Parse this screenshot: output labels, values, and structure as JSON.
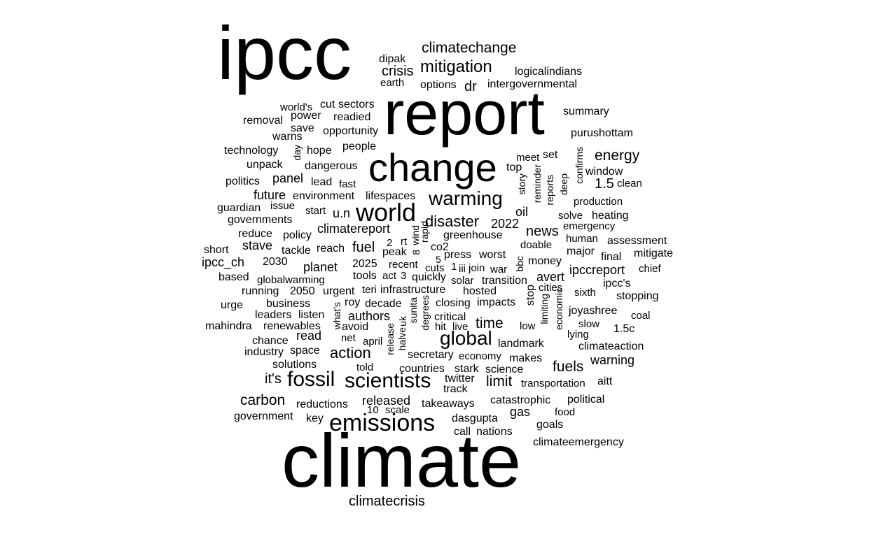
{
  "background": "#ffffff",
  "text_color": "#000000",
  "words": [
    {
      "text": "ipcc",
      "weight": 100
    },
    {
      "text": "climate",
      "weight": 100
    },
    {
      "text": "report",
      "weight": 80
    },
    {
      "text": "change",
      "weight": 60
    },
    {
      "text": "emissions",
      "weight": 36
    },
    {
      "text": "world",
      "weight": 36
    },
    {
      "text": "fossil",
      "weight": 32
    },
    {
      "text": "scientists",
      "weight": 30
    },
    {
      "text": "global",
      "weight": 28
    },
    {
      "text": "warming",
      "weight": 30
    },
    {
      "text": "mitigation",
      "weight": 26
    },
    {
      "text": "disaster",
      "weight": 24
    },
    {
      "text": "climatechange",
      "weight": 22
    },
    {
      "text": "action",
      "weight": 24
    },
    {
      "text": "time",
      "weight": 22
    },
    {
      "text": "carbon",
      "weight": 22
    },
    {
      "text": "limit",
      "weight": 22
    },
    {
      "text": "fuels",
      "weight": 22
    },
    {
      "text": "energy",
      "weight": 22
    },
    {
      "text": "it's",
      "weight": 22
    },
    {
      "text": "fuel",
      "weight": 22
    },
    {
      "text": "news",
      "weight": 20
    },
    {
      "text": "crisis",
      "weight": 20
    },
    {
      "text": "1.5",
      "weight": 20
    },
    {
      "text": "dr",
      "weight": 20
    },
    {
      "text": "climatecrisis",
      "weight": 20
    },
    {
      "text": "climatereport",
      "weight": 18
    },
    {
      "text": "planet",
      "weight": 18
    },
    {
      "text": "stave",
      "weight": 18
    },
    {
      "text": "ipcc_ch",
      "weight": 18
    },
    {
      "text": "ipccreport",
      "weight": 18
    },
    {
      "text": "avert",
      "weight": 18
    },
    {
      "text": "warning",
      "weight": 18
    },
    {
      "text": "authors",
      "weight": 18
    },
    {
      "text": "read",
      "weight": 18
    },
    {
      "text": "gas",
      "weight": 18
    },
    {
      "text": "released",
      "weight": 18
    },
    {
      "text": "u.n",
      "weight": 18
    },
    {
      "text": "panel",
      "weight": 18
    },
    {
      "text": "future",
      "weight": 18
    },
    {
      "text": "2022",
      "weight": 18
    },
    {
      "text": "warns",
      "weight": 16
    },
    {
      "text": "oil",
      "weight": 16
    },
    {
      "text": "greenhouse",
      "weight": 16
    },
    {
      "text": "summary",
      "weight": 16
    },
    {
      "text": "purushottam",
      "weight": 16
    },
    {
      "text": "intergovernmental",
      "weight": 16
    },
    {
      "text": "logicalindians",
      "weight": 16
    },
    {
      "text": "options",
      "weight": 16
    },
    {
      "text": "earth",
      "weight": 16
    },
    {
      "text": "dipak",
      "weight": 16
    },
    {
      "text": "sectors",
      "weight": 16
    },
    {
      "text": "cut",
      "weight": 16
    },
    {
      "text": "world's",
      "weight": 16
    },
    {
      "text": "power",
      "weight": 16
    },
    {
      "text": "readied",
      "weight": 16
    },
    {
      "text": "removal",
      "weight": 16
    },
    {
      "text": "save",
      "weight": 16
    },
    {
      "text": "opportunity",
      "weight": 16
    },
    {
      "text": "people",
      "weight": 16
    },
    {
      "text": "technology",
      "weight": 16
    },
    {
      "text": "hope",
      "weight": 16
    },
    {
      "text": "day",
      "weight": 16
    },
    {
      "text": "unpack",
      "weight": 16
    },
    {
      "text": "dangerous",
      "weight": 16
    },
    {
      "text": "politics",
      "weight": 16
    },
    {
      "text": "lead",
      "weight": 16
    },
    {
      "text": "fast",
      "weight": 16
    },
    {
      "text": "environment",
      "weight": 16
    },
    {
      "text": "lifespaces",
      "weight": 16
    },
    {
      "text": "guardian",
      "weight": 16
    },
    {
      "text": "issue",
      "weight": 16
    },
    {
      "text": "start",
      "weight": 16
    },
    {
      "text": "governments",
      "weight": 16
    },
    {
      "text": "reduce",
      "weight": 16
    },
    {
      "text": "policy",
      "weight": 16
    },
    {
      "text": "short",
      "weight": 16
    },
    {
      "text": "tackle",
      "weight": 16
    },
    {
      "text": "reach",
      "weight": 16
    },
    {
      "text": "2030",
      "weight": 16
    },
    {
      "text": "based",
      "weight": 16
    },
    {
      "text": "globalwarming",
      "weight": 16
    },
    {
      "text": "running",
      "weight": 16
    },
    {
      "text": "2050",
      "weight": 16
    },
    {
      "text": "urgent",
      "weight": 16
    },
    {
      "text": "urge",
      "weight": 16
    },
    {
      "text": "business",
      "weight": 16
    },
    {
      "text": "leaders",
      "weight": 16
    },
    {
      "text": "listen",
      "weight": 16
    },
    {
      "text": "mahindra",
      "weight": 16
    },
    {
      "text": "renewables",
      "weight": 16
    },
    {
      "text": "chance",
      "weight": 16
    },
    {
      "text": "industry",
      "weight": 16
    },
    {
      "text": "space",
      "weight": 16
    },
    {
      "text": "solutions",
      "weight": 16
    },
    {
      "text": "government",
      "weight": 16
    },
    {
      "text": "reductions",
      "weight": 16
    },
    {
      "text": "key",
      "weight": 16
    },
    {
      "text": "10",
      "weight": 16
    },
    {
      "text": "scale",
      "weight": 16
    },
    {
      "text": "takeaways",
      "weight": 16
    },
    {
      "text": "dasgupta",
      "weight": 16
    },
    {
      "text": "call",
      "weight": 16
    },
    {
      "text": "nations",
      "weight": 16
    },
    {
      "text": "goals",
      "weight": 16
    },
    {
      "text": "climateemergency",
      "weight": 16
    },
    {
      "text": "catastrophic",
      "weight": 16
    },
    {
      "text": "political",
      "weight": 16
    },
    {
      "text": "food",
      "weight": 16
    },
    {
      "text": "transportation",
      "weight": 16
    },
    {
      "text": "aitt",
      "weight": 16
    },
    {
      "text": "science",
      "weight": 16
    },
    {
      "text": "countries",
      "weight": 16
    },
    {
      "text": "stark",
      "weight": 16
    },
    {
      "text": "twitter",
      "weight": 16
    },
    {
      "text": "track",
      "weight": 16
    },
    {
      "text": "told",
      "weight": 16
    },
    {
      "text": "secretary",
      "weight": 16
    },
    {
      "text": "economy",
      "weight": 16
    },
    {
      "text": "makes",
      "weight": 16
    },
    {
      "text": "climateaction",
      "weight": 16
    },
    {
      "text": "landmark",
      "weight": 16
    },
    {
      "text": "net",
      "weight": 16
    },
    {
      "text": "april",
      "weight": 16
    },
    {
      "text": "avoid",
      "weight": 16
    },
    {
      "text": "critical",
      "weight": 16
    },
    {
      "text": "hit",
      "weight": 16
    },
    {
      "text": "live",
      "weight": 16
    },
    {
      "text": "low",
      "weight": 16
    },
    {
      "text": "slow",
      "weight": 16
    },
    {
      "text": "lying",
      "weight": 16
    },
    {
      "text": "1.5c",
      "weight": 16
    },
    {
      "text": "coal",
      "weight": 16
    },
    {
      "text": "joyashree",
      "weight": 16
    },
    {
      "text": "sixth",
      "weight": 16
    },
    {
      "text": "stopping",
      "weight": 16
    },
    {
      "text": "ipcc's",
      "weight": 16
    },
    {
      "text": "chief",
      "weight": 16
    },
    {
      "text": "mitigate",
      "weight": 16
    },
    {
      "text": "final",
      "weight": 16
    },
    {
      "text": "major",
      "weight": 16
    },
    {
      "text": "assessment",
      "weight": 16
    },
    {
      "text": "human",
      "weight": 16
    },
    {
      "text": "emergency",
      "weight": 16
    },
    {
      "text": "heating",
      "weight": 16
    },
    {
      "text": "solve",
      "weight": 16
    },
    {
      "text": "production",
      "weight": 16
    },
    {
      "text": "clean",
      "weight": 16
    },
    {
      "text": "window",
      "weight": 16
    },
    {
      "text": "confirms",
      "weight": 16
    },
    {
      "text": "deep",
      "weight": 16
    },
    {
      "text": "reports",
      "weight": 16
    },
    {
      "text": "reminder",
      "weight": 16
    },
    {
      "text": "story",
      "weight": 16
    },
    {
      "text": "top",
      "weight": 16
    },
    {
      "text": "meet",
      "weight": 16
    },
    {
      "text": "set",
      "weight": 16
    },
    {
      "text": "doable",
      "weight": 16
    },
    {
      "text": "money",
      "weight": 16
    },
    {
      "text": "cities",
      "weight": 16
    },
    {
      "text": "bbc",
      "weight": 16
    },
    {
      "text": "stop",
      "weight": 16
    },
    {
      "text": "impacts",
      "weight": 16
    },
    {
      "text": "closing",
      "weight": 16
    },
    {
      "text": "hosted",
      "weight": 16
    },
    {
      "text": "transition",
      "weight": 16
    },
    {
      "text": "solar",
      "weight": 16
    },
    {
      "text": "quickly",
      "weight": 16
    },
    {
      "text": "infrastructure",
      "weight": 16
    },
    {
      "text": "teri",
      "weight": 16
    },
    {
      "text": "tools",
      "weight": 16
    },
    {
      "text": "act",
      "weight": 16
    },
    {
      "text": "3",
      "weight": 16
    },
    {
      "text": "2025",
      "weight": 16
    },
    {
      "text": "recent",
      "weight": 16
    },
    {
      "text": "cuts",
      "weight": 16
    },
    {
      "text": "1",
      "weight": 16
    },
    {
      "text": "iii",
      "weight": 16
    },
    {
      "text": "join",
      "weight": 16
    },
    {
      "text": "war",
      "weight": 16
    },
    {
      "text": "press",
      "weight": 16
    },
    {
      "text": "worst",
      "weight": 16
    },
    {
      "text": "5",
      "weight": 16
    },
    {
      "text": "peak",
      "weight": 16
    },
    {
      "text": "co2",
      "weight": 16
    },
    {
      "text": "rt",
      "weight": 16
    },
    {
      "text": "2",
      "weight": 16
    },
    {
      "text": "8",
      "weight": 16
    },
    {
      "text": "wind",
      "weight": 16
    },
    {
      "text": "rapid",
      "weight": 16
    },
    {
      "text": "roy",
      "weight": 16
    },
    {
      "text": "decade",
      "weight": 16
    },
    {
      "text": "what's",
      "weight": 16
    },
    {
      "text": "release",
      "weight": 16
    },
    {
      "text": "halve",
      "weight": 16
    },
    {
      "text": "uk",
      "weight": 16
    },
    {
      "text": "sunita",
      "weight": 16
    },
    {
      "text": "degrees",
      "weight": 16
    },
    {
      "text": "limiting",
      "weight": 16
    },
    {
      "text": "economic",
      "weight": 16
    }
  ]
}
